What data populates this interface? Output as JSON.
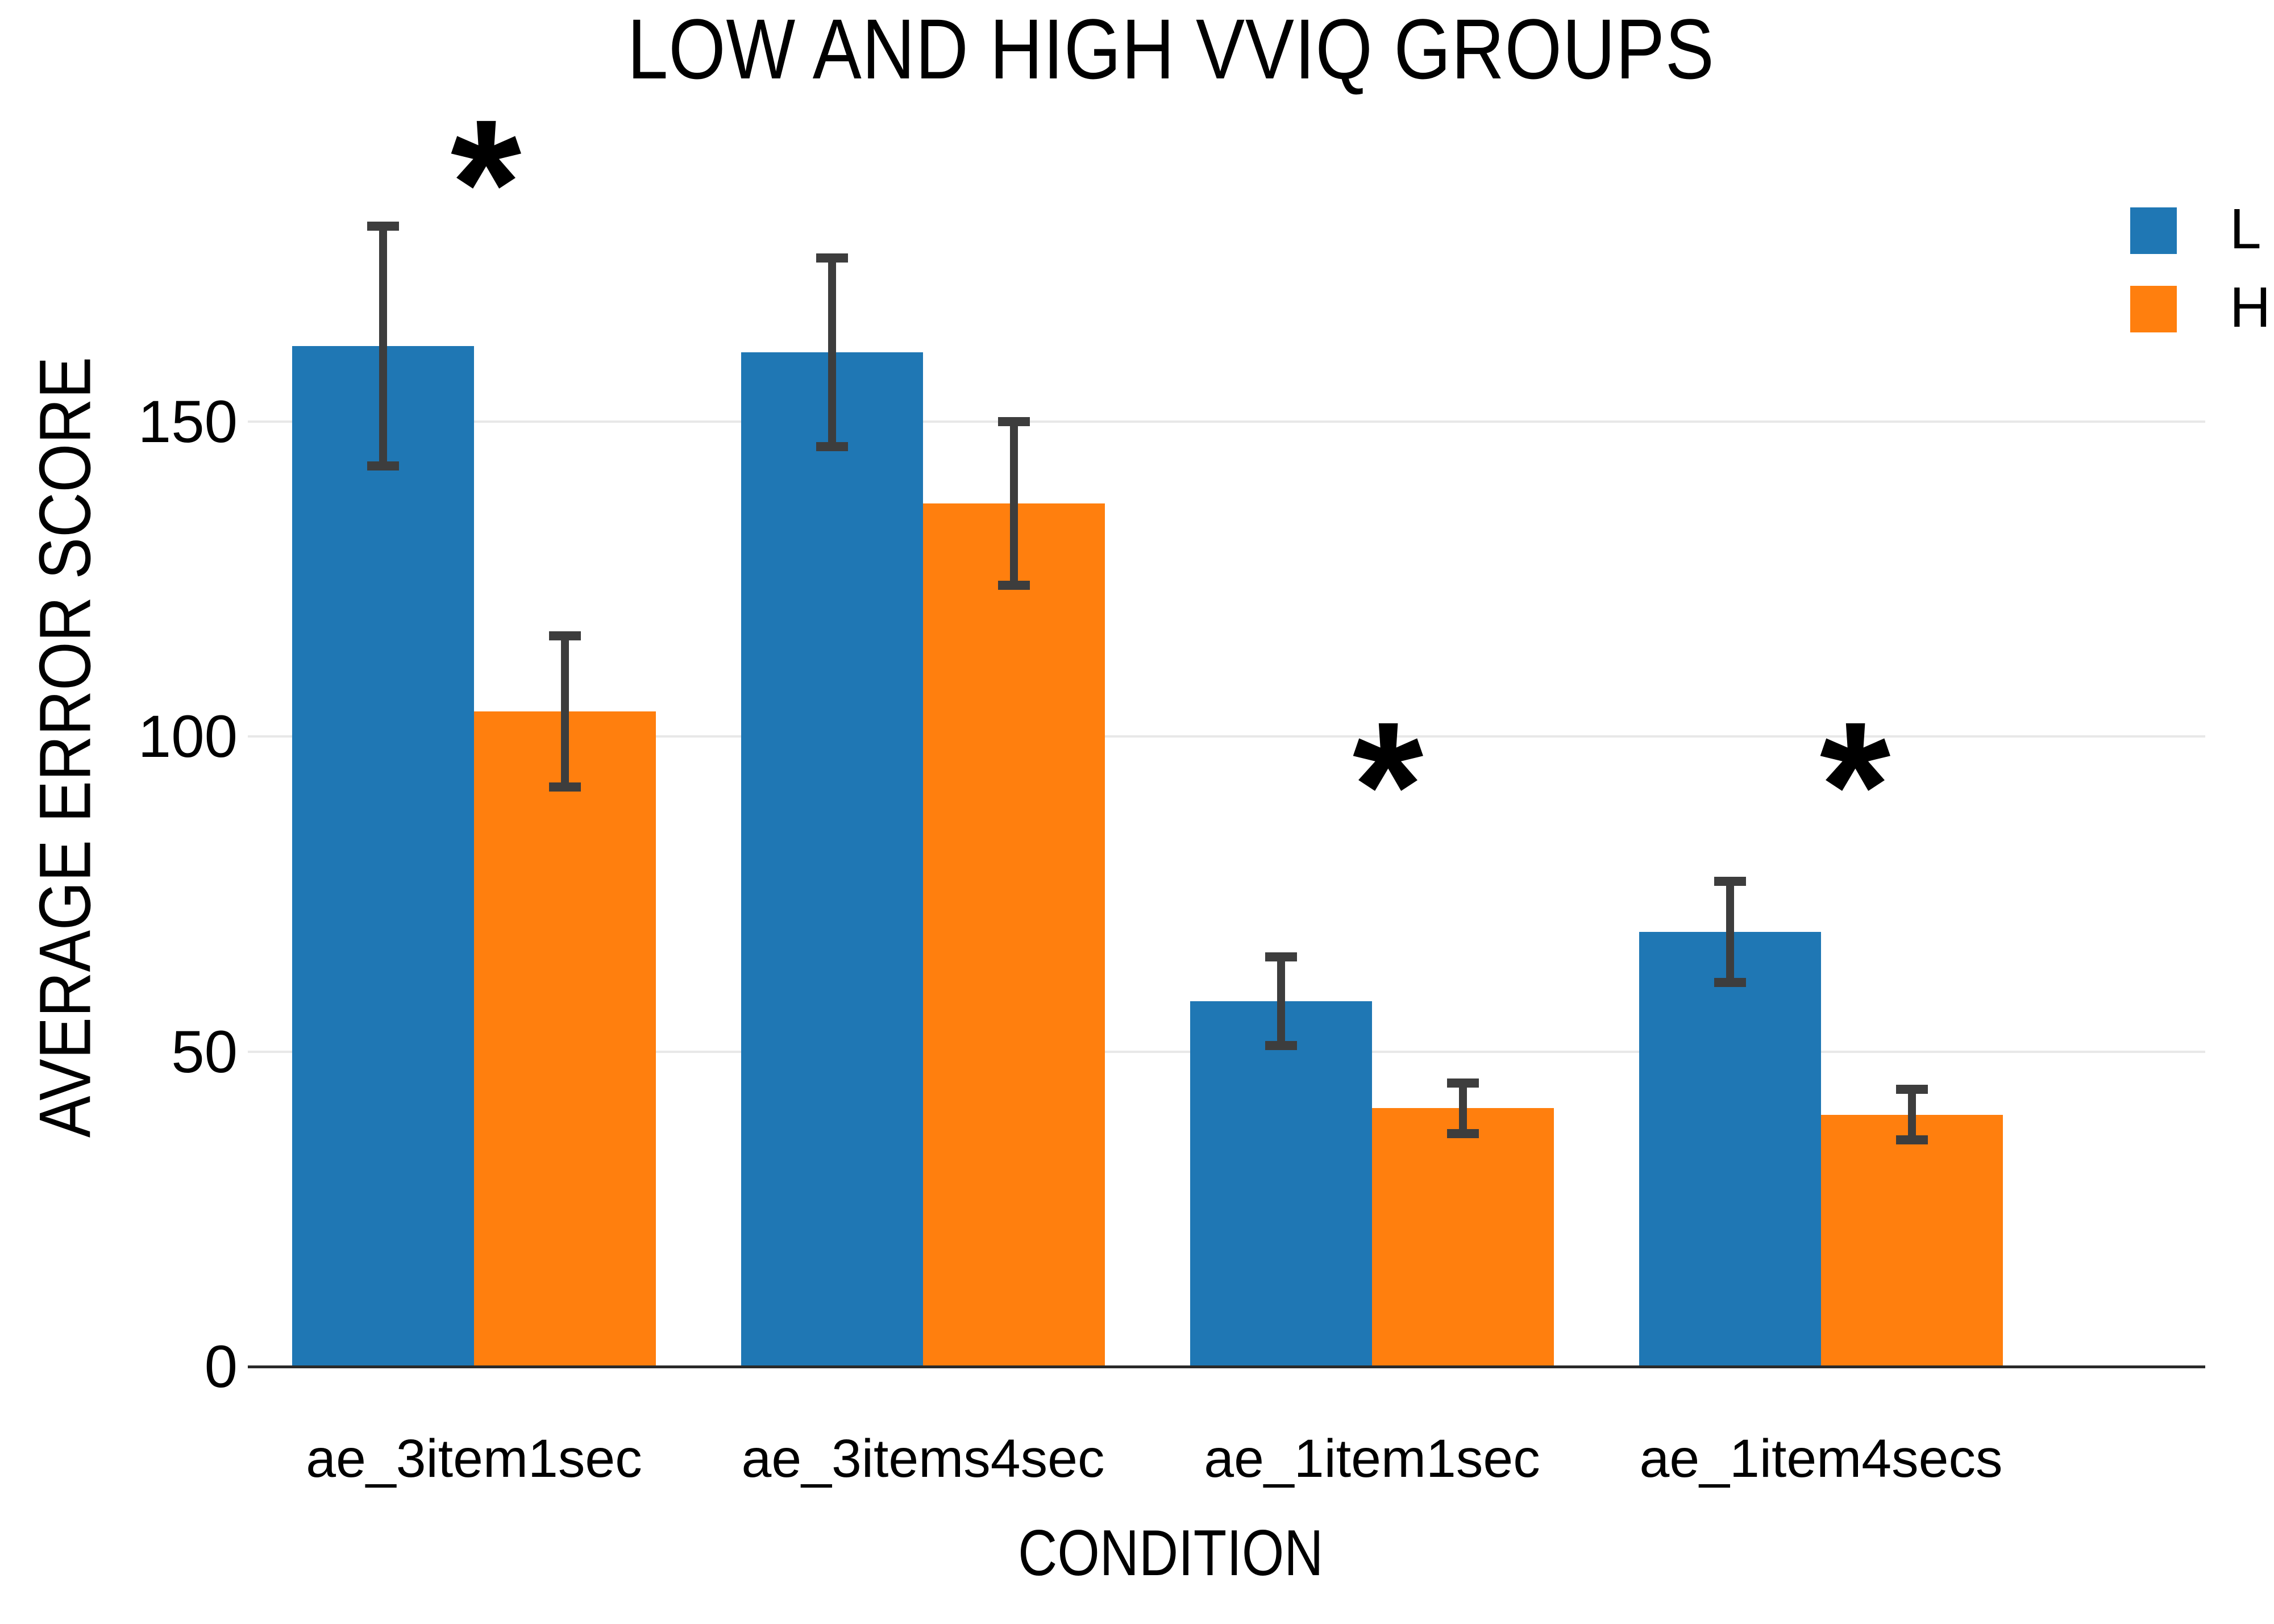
{
  "title": "LOW AND HIGH VVIQ GROUPS",
  "chart_data": {
    "type": "bar",
    "title": "LOW AND HIGH VVIQ GROUPS",
    "xlabel": "CONDITION",
    "ylabel": "AVERAGE ERROR SCORE",
    "categories": [
      "ae_3item1sec",
      "ae_3items4sec",
      "ae_1item1sec",
      "ae_1item4secs"
    ],
    "series": [
      {
        "name": "L",
        "color": "#1f77b4",
        "values": [
          162,
          161,
          58,
          69
        ],
        "errors": [
          19,
          15,
          7,
          8
        ]
      },
      {
        "name": "H",
        "color": "#ff7f0e",
        "values": [
          104,
          137,
          41,
          40
        ],
        "errors": [
          12,
          13,
          4,
          4
        ]
      }
    ],
    "yticks": [
      0,
      50,
      100,
      150
    ],
    "ylim": [
      0,
      190
    ],
    "grid": true,
    "error_bar_color": "#3d3d3d",
    "gridline_color": "#e8e8e8",
    "axis_line_color": "#2a2a2a",
    "legend_position": "upper right outside",
    "annotations": [
      {
        "symbol": "*",
        "category": "ae_3item1sec"
      },
      {
        "symbol": "*",
        "category": "ae_1item1sec"
      },
      {
        "symbol": "*",
        "category": "ae_1item4secs"
      }
    ]
  },
  "legend": {
    "entries": [
      {
        "label": "L",
        "color": "#1f77b4"
      },
      {
        "label": "H",
        "color": "#ff7f0e"
      }
    ]
  }
}
